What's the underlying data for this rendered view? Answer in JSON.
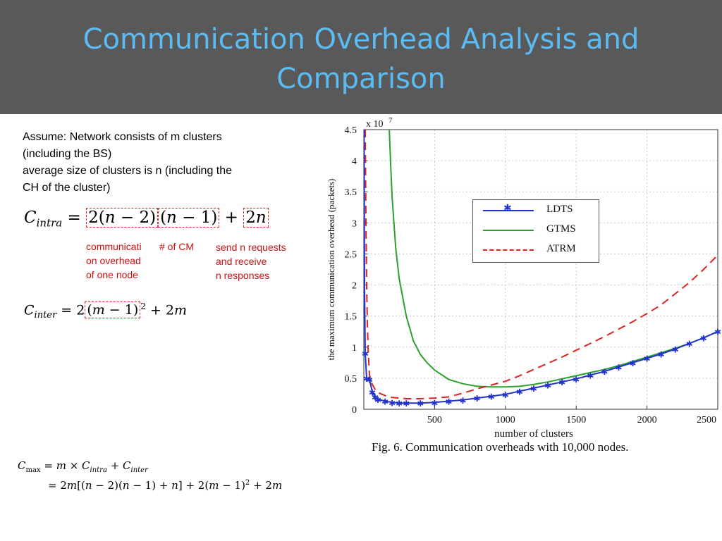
{
  "slide": {
    "title_line1": "Communication Overhead Analysis and",
    "title_line2": "Comparison",
    "assume_line1": "Assume: Network consists of m clusters",
    "assume_line2": "(including the BS)",
    "assume_line3": "average size of clusters is n (including the",
    "assume_line4": "CH of the cluster)",
    "notes": {
      "comm_overhead_1": "communicati",
      "comm_overhead_2": "on overhead",
      "comm_overhead_3": "of one node",
      "num_cm": "# of CM",
      "send_1": "send n requests",
      "send_2": "and receive",
      "send_3": "n responses"
    },
    "colors": {
      "title_bg": "#595959",
      "title_text": "#5bbcf3",
      "annotation": "#cc1111"
    }
  },
  "chart_data": {
    "type": "line",
    "caption": "Fig. 6.   Communication overheads with 10,000 nodes.",
    "xlabel": "number of clusters",
    "ylabel": "the maximum communication overhead (packets)",
    "y_exponent_label": "x 10",
    "y_exponent_power": "7",
    "xlim": [
      0,
      2500
    ],
    "ylim": [
      0,
      4.5
    ],
    "xticks": [
      500,
      1000,
      1500,
      2000,
      2500
    ],
    "yticks": [
      0,
      0.5,
      1,
      1.5,
      2,
      2.5,
      3,
      3.5,
      4,
      4.5
    ],
    "xtick_labels": [
      "500",
      "1000",
      "1500",
      "2000",
      "2500"
    ],
    "ytick_labels": [
      "0",
      "0.5",
      "1",
      "1.5",
      "2",
      "2.5",
      "3",
      "3.5",
      "4",
      "4.5"
    ],
    "grid": true,
    "legend_position": "upper-right",
    "series": [
      {
        "name": "LDTS",
        "color": "#2233cc",
        "marker": "star",
        "x": [
          2,
          5,
          10,
          20,
          40,
          60,
          80,
          100,
          150,
          200,
          250,
          300,
          400,
          500,
          600,
          700,
          800,
          900,
          1000,
          1100,
          1200,
          1300,
          1400,
          1500,
          1600,
          1700,
          1800,
          1900,
          2000,
          2100,
          2200,
          2300,
          2400,
          2500
        ],
        "y": [
          4.5,
          2.0,
          0.9,
          0.5,
          0.48,
          0.28,
          0.2,
          0.16,
          0.13,
          0.11,
          0.1,
          0.1,
          0.1,
          0.11,
          0.13,
          0.15,
          0.18,
          0.21,
          0.24,
          0.29,
          0.34,
          0.39,
          0.44,
          0.49,
          0.55,
          0.61,
          0.68,
          0.75,
          0.82,
          0.89,
          0.97,
          1.06,
          1.15,
          1.25
        ]
      },
      {
        "name": "GTMS",
        "color": "#2ca02c",
        "marker": "none",
        "x": [
          180,
          190,
          200,
          225,
          250,
          300,
          350,
          400,
          450,
          500,
          600,
          700,
          800,
          900,
          1000,
          1100,
          1200,
          1300,
          1400,
          1500,
          1600,
          1700,
          1800,
          1900,
          2000,
          2100,
          2200,
          2300,
          2400,
          2500
        ],
        "y": [
          4.5,
          3.9,
          3.4,
          2.6,
          2.1,
          1.5,
          1.1,
          0.88,
          0.74,
          0.63,
          0.48,
          0.41,
          0.37,
          0.36,
          0.36,
          0.37,
          0.4,
          0.44,
          0.49,
          0.54,
          0.59,
          0.64,
          0.7,
          0.77,
          0.84,
          0.91,
          0.98,
          1.06,
          1.15,
          1.25
        ]
      },
      {
        "name": "ATRM",
        "color": "#dd2222",
        "marker": "none",
        "dash": "dashed",
        "x": [
          10,
          15,
          20,
          25,
          30,
          40,
          60,
          80,
          100,
          150,
          200,
          300,
          400,
          500,
          600,
          700,
          800,
          900,
          1000,
          1100,
          1200,
          1300,
          1400,
          1500,
          1600,
          1700,
          1800,
          1900,
          2000,
          2100,
          2200,
          2300,
          2400,
          2500
        ],
        "y": [
          4.5,
          3.0,
          2.0,
          1.4,
          1.0,
          0.55,
          0.4,
          0.32,
          0.27,
          0.22,
          0.19,
          0.17,
          0.17,
          0.18,
          0.2,
          0.26,
          0.33,
          0.39,
          0.45,
          0.54,
          0.64,
          0.74,
          0.84,
          0.95,
          1.06,
          1.17,
          1.29,
          1.41,
          1.54,
          1.68,
          1.86,
          2.04,
          2.25,
          2.48
        ]
      }
    ]
  }
}
